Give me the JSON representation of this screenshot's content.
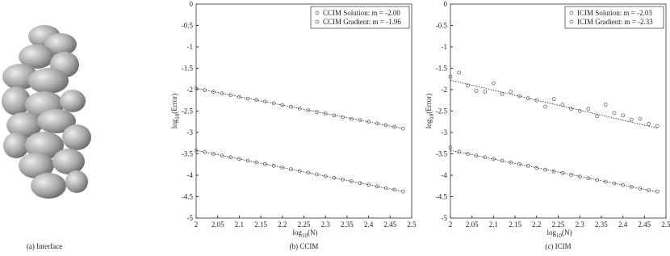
{
  "interface": {
    "caption": "(a) Interface"
  },
  "chart_data": [
    {
      "type": "scatter",
      "caption": "(b) CCIM",
      "x_label_parts": [
        "log",
        "10",
        "(N)"
      ],
      "y_label_parts": [
        "log",
        "10",
        "(Error)"
      ],
      "xlim": [
        2,
        2.5
      ],
      "xticks": [
        2,
        2.05,
        2.1,
        2.15,
        2.2,
        2.25,
        2.3,
        2.35,
        2.4,
        2.45,
        2.5
      ],
      "ylim": [
        -5,
        0
      ],
      "yticks": [
        0,
        -0.5,
        -1,
        -1.5,
        -2,
        -2.5,
        -3,
        -3.5,
        -4,
        -4.5,
        -5
      ],
      "legend": "upper right",
      "x": [
        2,
        2.02,
        2.04,
        2.06,
        2.08,
        2.1,
        2.12,
        2.14,
        2.16,
        2.18,
        2.2,
        2.22,
        2.24,
        2.26,
        2.28,
        2.3,
        2.32,
        2.34,
        2.36,
        2.38,
        2.4,
        2.42,
        2.44,
        2.46,
        2.48
      ],
      "series": [
        {
          "name": "CCIM Solution: m = -2.00",
          "color": "#555555",
          "values": [
            -3.42,
            -3.46,
            -3.5,
            -3.54,
            -3.58,
            -3.62,
            -3.66,
            -3.7,
            -3.74,
            -3.78,
            -3.82,
            -3.86,
            -3.9,
            -3.94,
            -3.98,
            -4.02,
            -4.06,
            -4.1,
            -4.14,
            -4.18,
            -4.22,
            -4.26,
            -4.3,
            -4.34,
            -4.38
          ]
        },
        {
          "name": "CCIM Gradient: m = -1.96",
          "color": "#555555",
          "values": [
            -1.97,
            -2.01,
            -2.05,
            -2.09,
            -2.13,
            -2.17,
            -2.21,
            -2.24,
            -2.28,
            -2.32,
            -2.36,
            -2.4,
            -2.44,
            -2.48,
            -2.52,
            -2.56,
            -2.6,
            -2.64,
            -2.68,
            -2.71,
            -2.75,
            -2.79,
            -2.83,
            -2.87,
            -2.91
          ]
        }
      ],
      "fits": [
        {
          "x": [
            2,
            2.48
          ],
          "values": [
            -3.42,
            -4.38
          ]
        },
        {
          "x": [
            2,
            2.48
          ],
          "values": [
            -1.97,
            -2.91
          ]
        }
      ]
    },
    {
      "type": "scatter",
      "caption": "(c) ICIM",
      "x_label_parts": [
        "log",
        "10",
        "(N)"
      ],
      "y_label_parts": [
        "log",
        "10",
        "(Error)"
      ],
      "xlim": [
        2,
        2.5
      ],
      "xticks": [
        2,
        2.05,
        2.1,
        2.15,
        2.2,
        2.25,
        2.3,
        2.35,
        2.4,
        2.45,
        2.5
      ],
      "ylim": [
        -5,
        0
      ],
      "yticks": [
        0,
        -0.5,
        -1,
        -1.5,
        -2,
        -2.5,
        -3,
        -3.5,
        -4,
        -4.5,
        -5
      ],
      "legend": "upper right",
      "x": [
        2,
        2.02,
        2.04,
        2.06,
        2.08,
        2.1,
        2.12,
        2.14,
        2.16,
        2.18,
        2.2,
        2.22,
        2.24,
        2.26,
        2.28,
        2.3,
        2.32,
        2.34,
        2.36,
        2.38,
        2.4,
        2.42,
        2.44,
        2.46,
        2.48
      ],
      "series": [
        {
          "name": "ICIM Solution: m = -2.03",
          "color": "#555555",
          "values": [
            -3.35,
            -3.45,
            -3.5,
            -3.54,
            -3.58,
            -3.62,
            -3.66,
            -3.7,
            -3.74,
            -3.78,
            -3.83,
            -3.87,
            -3.91,
            -3.95,
            -3.99,
            -4.03,
            -4.07,
            -4.11,
            -4.15,
            -4.19,
            -4.23,
            -4.27,
            -4.31,
            -4.35,
            -4.38
          ]
        },
        {
          "name": "ICIM Gradient: m = -2.33",
          "color": "#555555",
          "values": [
            -1.7,
            -1.6,
            -1.9,
            -2.03,
            -2.05,
            -1.85,
            -2.1,
            -2.05,
            -2.15,
            -2.2,
            -2.25,
            -2.4,
            -2.22,
            -2.35,
            -2.45,
            -2.5,
            -2.45,
            -2.62,
            -2.35,
            -2.55,
            -2.6,
            -2.7,
            -2.68,
            -2.8,
            -2.85
          ]
        }
      ],
      "fits": [
        {
          "x": [
            2,
            2.48
          ],
          "values": [
            -3.42,
            -4.39
          ]
        },
        {
          "x": [
            2,
            2.48
          ],
          "values": [
            -1.78,
            -2.9
          ]
        }
      ]
    }
  ]
}
